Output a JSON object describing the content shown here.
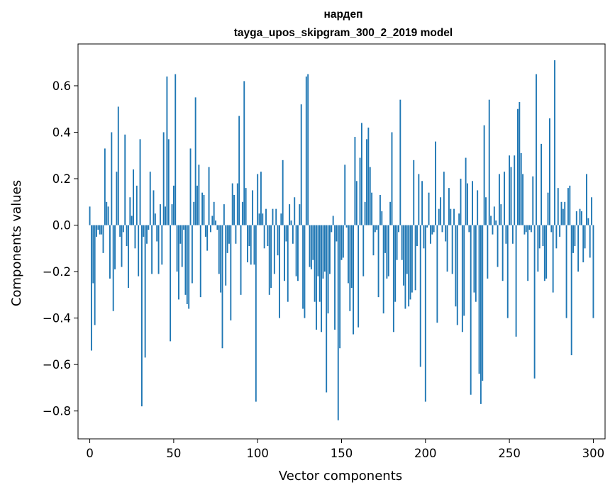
{
  "chart_data": {
    "type": "bar",
    "title_line1": "нардеп",
    "title_line2": "tayga_upos_skipgram_300_2_2019 model",
    "xlabel": "Vector components",
    "ylabel": "Components values",
    "xlim": [
      -7,
      307
    ],
    "ylim": [
      -0.92,
      0.78
    ],
    "bar_color": "#1f77b4",
    "xticks": [
      0,
      50,
      100,
      150,
      200,
      250,
      300
    ],
    "xtick_labels": [
      "0",
      "50",
      "100",
      "150",
      "200",
      "250",
      "300"
    ],
    "yticks": [
      -0.8,
      -0.6,
      -0.4,
      -0.2,
      0.0,
      0.2,
      0.4,
      0.6
    ],
    "ytick_labels": [
      "−0.8",
      "−0.6",
      "−0.4",
      "−0.2",
      "0.0",
      "0.2",
      "0.4",
      "0.6"
    ],
    "values": [
      0.08,
      -0.54,
      -0.25,
      -0.43,
      -0.05,
      -0.02,
      -0.04,
      -0.04,
      -0.12,
      0.33,
      0.1,
      0.08,
      -0.23,
      0.4,
      -0.37,
      -0.19,
      0.23,
      0.51,
      -0.05,
      -0.18,
      -0.03,
      0.39,
      -0.09,
      -0.27,
      0.12,
      0.04,
      0.24,
      -0.1,
      0.17,
      -0.22,
      0.37,
      -0.78,
      -0.05,
      -0.57,
      -0.08,
      -0.02,
      0.23,
      -0.21,
      0.15,
      0.05,
      -0.07,
      -0.21,
      0.09,
      -0.17,
      0.4,
      0.08,
      0.64,
      0.37,
      -0.5,
      0.09,
      0.17,
      0.65,
      -0.2,
      -0.32,
      -0.08,
      -0.18,
      -0.02,
      -0.3,
      -0.34,
      -0.36,
      0.33,
      -0.25,
      0.1,
      0.55,
      0.17,
      0.26,
      -0.31,
      0.14,
      0.13,
      -0.05,
      -0.11,
      0.25,
      -0.03,
      0.04,
      0.1,
      0.02,
      -0.02,
      -0.21,
      -0.29,
      -0.53,
      0.09,
      -0.26,
      -0.12,
      -0.08,
      -0.41,
      0.18,
      0.13,
      -0.08,
      0.18,
      0.47,
      -0.3,
      0.1,
      0.62,
      0.16,
      -0.16,
      -0.09,
      -0.17,
      0.15,
      -0.17,
      -0.76,
      0.22,
      0.05,
      0.23,
      0.05,
      -0.1,
      0.07,
      -0.09,
      -0.3,
      -0.27,
      0.07,
      -0.21,
      0.07,
      -0.13,
      -0.4,
      0.05,
      0.28,
      -0.24,
      -0.07,
      -0.33,
      0.09,
      0.02,
      -0.08,
      0.12,
      -0.22,
      -0.24,
      0.09,
      0.52,
      -0.36,
      -0.4,
      0.64,
      0.65,
      -0.18,
      -0.19,
      -0.15,
      -0.33,
      -0.45,
      -0.22,
      -0.33,
      -0.46,
      -0.23,
      -0.2,
      -0.72,
      -0.38,
      -0.21,
      -0.03,
      0.04,
      -0.45,
      -0.07,
      -0.84,
      -0.53,
      -0.15,
      -0.14,
      0.26,
      -0.01,
      -0.25,
      -0.37,
      -0.27,
      -0.47,
      0.38,
      0.19,
      -0.44,
      0.29,
      0.44,
      -0.22,
      0.1,
      0.37,
      0.42,
      0.25,
      0.14,
      -0.13,
      -0.03,
      -0.02,
      -0.31,
      0.13,
      0.06,
      -0.38,
      -0.12,
      -0.23,
      -0.22,
      0.1,
      0.4,
      -0.46,
      -0.33,
      -0.15,
      -0.03,
      0.54,
      -0.15,
      -0.26,
      -0.36,
      -0.21,
      -0.35,
      -0.32,
      -0.29,
      0.28,
      -0.28,
      -0.09,
      0.22,
      -0.61,
      0.19,
      -0.1,
      -0.76,
      -0.01,
      0.14,
      -0.08,
      -0.04,
      -0.03,
      0.36,
      -0.42,
      0.07,
      0.12,
      -0.03,
      0.23,
      -0.07,
      -0.2,
      0.16,
      0.07,
      -0.21,
      0.07,
      -0.35,
      -0.43,
      0.05,
      0.2,
      -0.46,
      -0.39,
      0.29,
      0.18,
      -0.03,
      -0.73,
      0.19,
      -0.29,
      -0.33,
      0.15,
      -0.64,
      -0.77,
      -0.67,
      0.43,
      0.12,
      -0.23,
      0.54,
      0.04,
      -0.04,
      0.08,
      0.02,
      -0.18,
      0.22,
      0.09,
      -0.24,
      0.23,
      -0.08,
      -0.4,
      0.3,
      0.25,
      -0.08,
      0.3,
      -0.48,
      0.5,
      0.53,
      0.31,
      0.22,
      -0.04,
      -0.03,
      -0.24,
      -0.02,
      -0.03,
      0.21,
      -0.66,
      0.65,
      -0.2,
      -0.1,
      0.35,
      -0.09,
      -0.24,
      -0.23,
      0.14,
      0.46,
      -0.03,
      -0.29,
      0.71,
      -0.1,
      0.16,
      -0.05,
      0.1,
      0.07,
      0.1,
      -0.4,
      0.16,
      0.17,
      -0.56,
      -0.12,
      -0.09,
      0.06,
      -0.2,
      0.07,
      0.06,
      -0.16,
      -0.1,
      0.22,
      0.03,
      -0.14,
      0.12,
      -0.4
    ]
  }
}
